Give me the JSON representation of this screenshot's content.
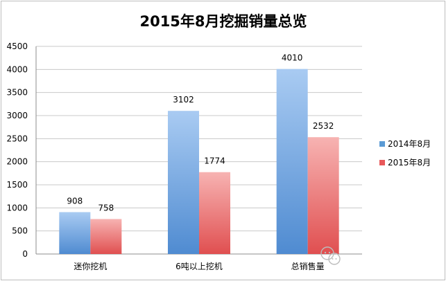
{
  "chart_data": {
    "type": "bar",
    "title": "2015年8月挖掘销量总览",
    "categories": [
      "迷你挖机",
      "6吨以上挖机",
      "总销售量"
    ],
    "series": [
      {
        "name": "2014年8月",
        "values": [
          908,
          3102,
          4010
        ],
        "color": "#5b9bd5"
      },
      {
        "name": "2015年8月",
        "values": [
          758,
          1774,
          2532
        ],
        "color": "#e8585a"
      }
    ],
    "ylim": [
      0,
      4500
    ],
    "yticks": [
      0,
      500,
      1000,
      1500,
      2000,
      2500,
      3000,
      3500,
      4000,
      4500
    ],
    "grid": true,
    "legend": "right",
    "watermark_icon": "wechat-icon"
  }
}
